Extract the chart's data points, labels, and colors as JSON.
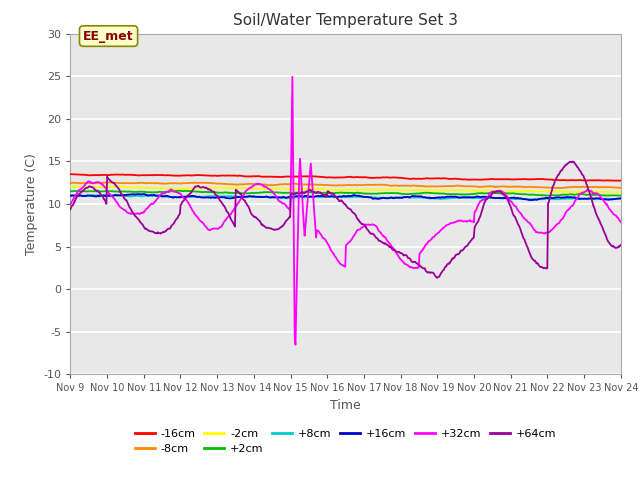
{
  "title": "Soil/Water Temperature Set 3",
  "xlabel": "Time",
  "ylabel": "Temperature (C)",
  "xlim": [
    0,
    15
  ],
  "ylim": [
    -10,
    30
  ],
  "yticks": [
    -10,
    -5,
    0,
    5,
    10,
    15,
    20,
    25,
    30
  ],
  "xtick_labels": [
    "Nov 9",
    "Nov 10",
    "Nov 11",
    "Nov 12",
    "Nov 13",
    "Nov 14",
    "Nov 15",
    "Nov 16",
    "Nov 17",
    "Nov 18",
    "Nov 19",
    "Nov 20",
    "Nov 21",
    "Nov 22",
    "Nov 23",
    "Nov 24"
  ],
  "annotation_text": "EE_met",
  "background_color": "#e8e8e8",
  "grid_color": "#ffffff",
  "series": [
    {
      "label": "-16cm",
      "color": "#ff0000"
    },
    {
      "label": "-8cm",
      "color": "#ff8800"
    },
    {
      "label": "-2cm",
      "color": "#ffff00"
    },
    {
      "label": "+2cm",
      "color": "#00bb00"
    },
    {
      "label": "+8cm",
      "color": "#00cccc"
    },
    {
      "label": "+16cm",
      "color": "#0000cc"
    },
    {
      "label": "+32cm",
      "color": "#ff00ff"
    },
    {
      "label": "+64cm",
      "color": "#990099"
    }
  ]
}
